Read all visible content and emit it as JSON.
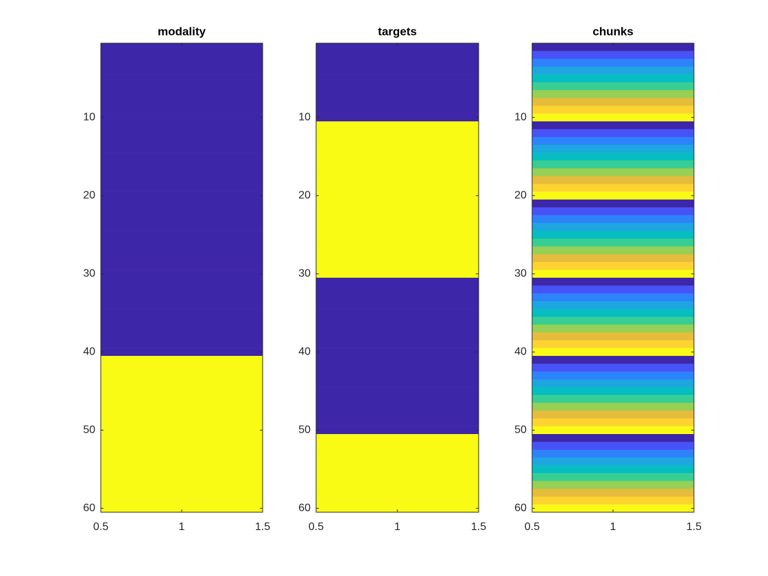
{
  "chart_data": [
    {
      "type": "heatmap",
      "title": "modality",
      "colormap": "parula",
      "y_reversed": true,
      "values": [
        1,
        1,
        1,
        1,
        1,
        1,
        1,
        1,
        1,
        1,
        1,
        1,
        1,
        1,
        1,
        1,
        1,
        1,
        1,
        1,
        1,
        1,
        1,
        1,
        1,
        1,
        1,
        1,
        1,
        1,
        1,
        1,
        1,
        1,
        1,
        1,
        1,
        1,
        1,
        1,
        2,
        2,
        2,
        2,
        2,
        2,
        2,
        2,
        2,
        2,
        2,
        2,
        2,
        2,
        2,
        2,
        2,
        2,
        2,
        2
      ],
      "xlim": [
        0.5,
        1.5
      ],
      "xticks": [
        0.5,
        1,
        1.5
      ],
      "ylim": [
        0.5,
        60.5
      ],
      "yticks": [
        10,
        20,
        30,
        40,
        50,
        60
      ]
    },
    {
      "type": "heatmap",
      "title": "targets",
      "colormap": "parula",
      "y_reversed": true,
      "values": [
        1,
        1,
        1,
        1,
        1,
        1,
        1,
        1,
        1,
        1,
        2,
        2,
        2,
        2,
        2,
        2,
        2,
        2,
        2,
        2,
        2,
        2,
        2,
        2,
        2,
        2,
        2,
        2,
        2,
        2,
        1,
        1,
        1,
        1,
        1,
        1,
        1,
        1,
        1,
        1,
        1,
        1,
        1,
        1,
        1,
        1,
        1,
        1,
        1,
        1,
        2,
        2,
        2,
        2,
        2,
        2,
        2,
        2,
        2,
        2
      ],
      "xlim": [
        0.5,
        1.5
      ],
      "xticks": [
        0.5,
        1,
        1.5
      ],
      "ylim": [
        0.5,
        60.5
      ],
      "yticks": [
        10,
        20,
        30,
        40,
        50,
        60
      ]
    },
    {
      "type": "heatmap",
      "title": "chunks",
      "colormap": "parula",
      "y_reversed": true,
      "values": [
        1,
        2,
        3,
        4,
        5,
        6,
        7,
        8,
        9,
        10,
        1,
        2,
        3,
        4,
        5,
        6,
        7,
        8,
        9,
        10,
        1,
        2,
        3,
        4,
        5,
        6,
        7,
        8,
        9,
        10,
        1,
        2,
        3,
        4,
        5,
        6,
        7,
        8,
        9,
        10,
        1,
        2,
        3,
        4,
        5,
        6,
        7,
        8,
        9,
        10,
        1,
        2,
        3,
        4,
        5,
        6,
        7,
        8,
        9,
        10
      ],
      "xlim": [
        0.5,
        1.5
      ],
      "xticks": [
        0.5,
        1,
        1.5
      ],
      "ylim": [
        0.5,
        60.5
      ],
      "yticks": [
        10,
        20,
        30,
        40,
        50,
        60
      ]
    }
  ]
}
